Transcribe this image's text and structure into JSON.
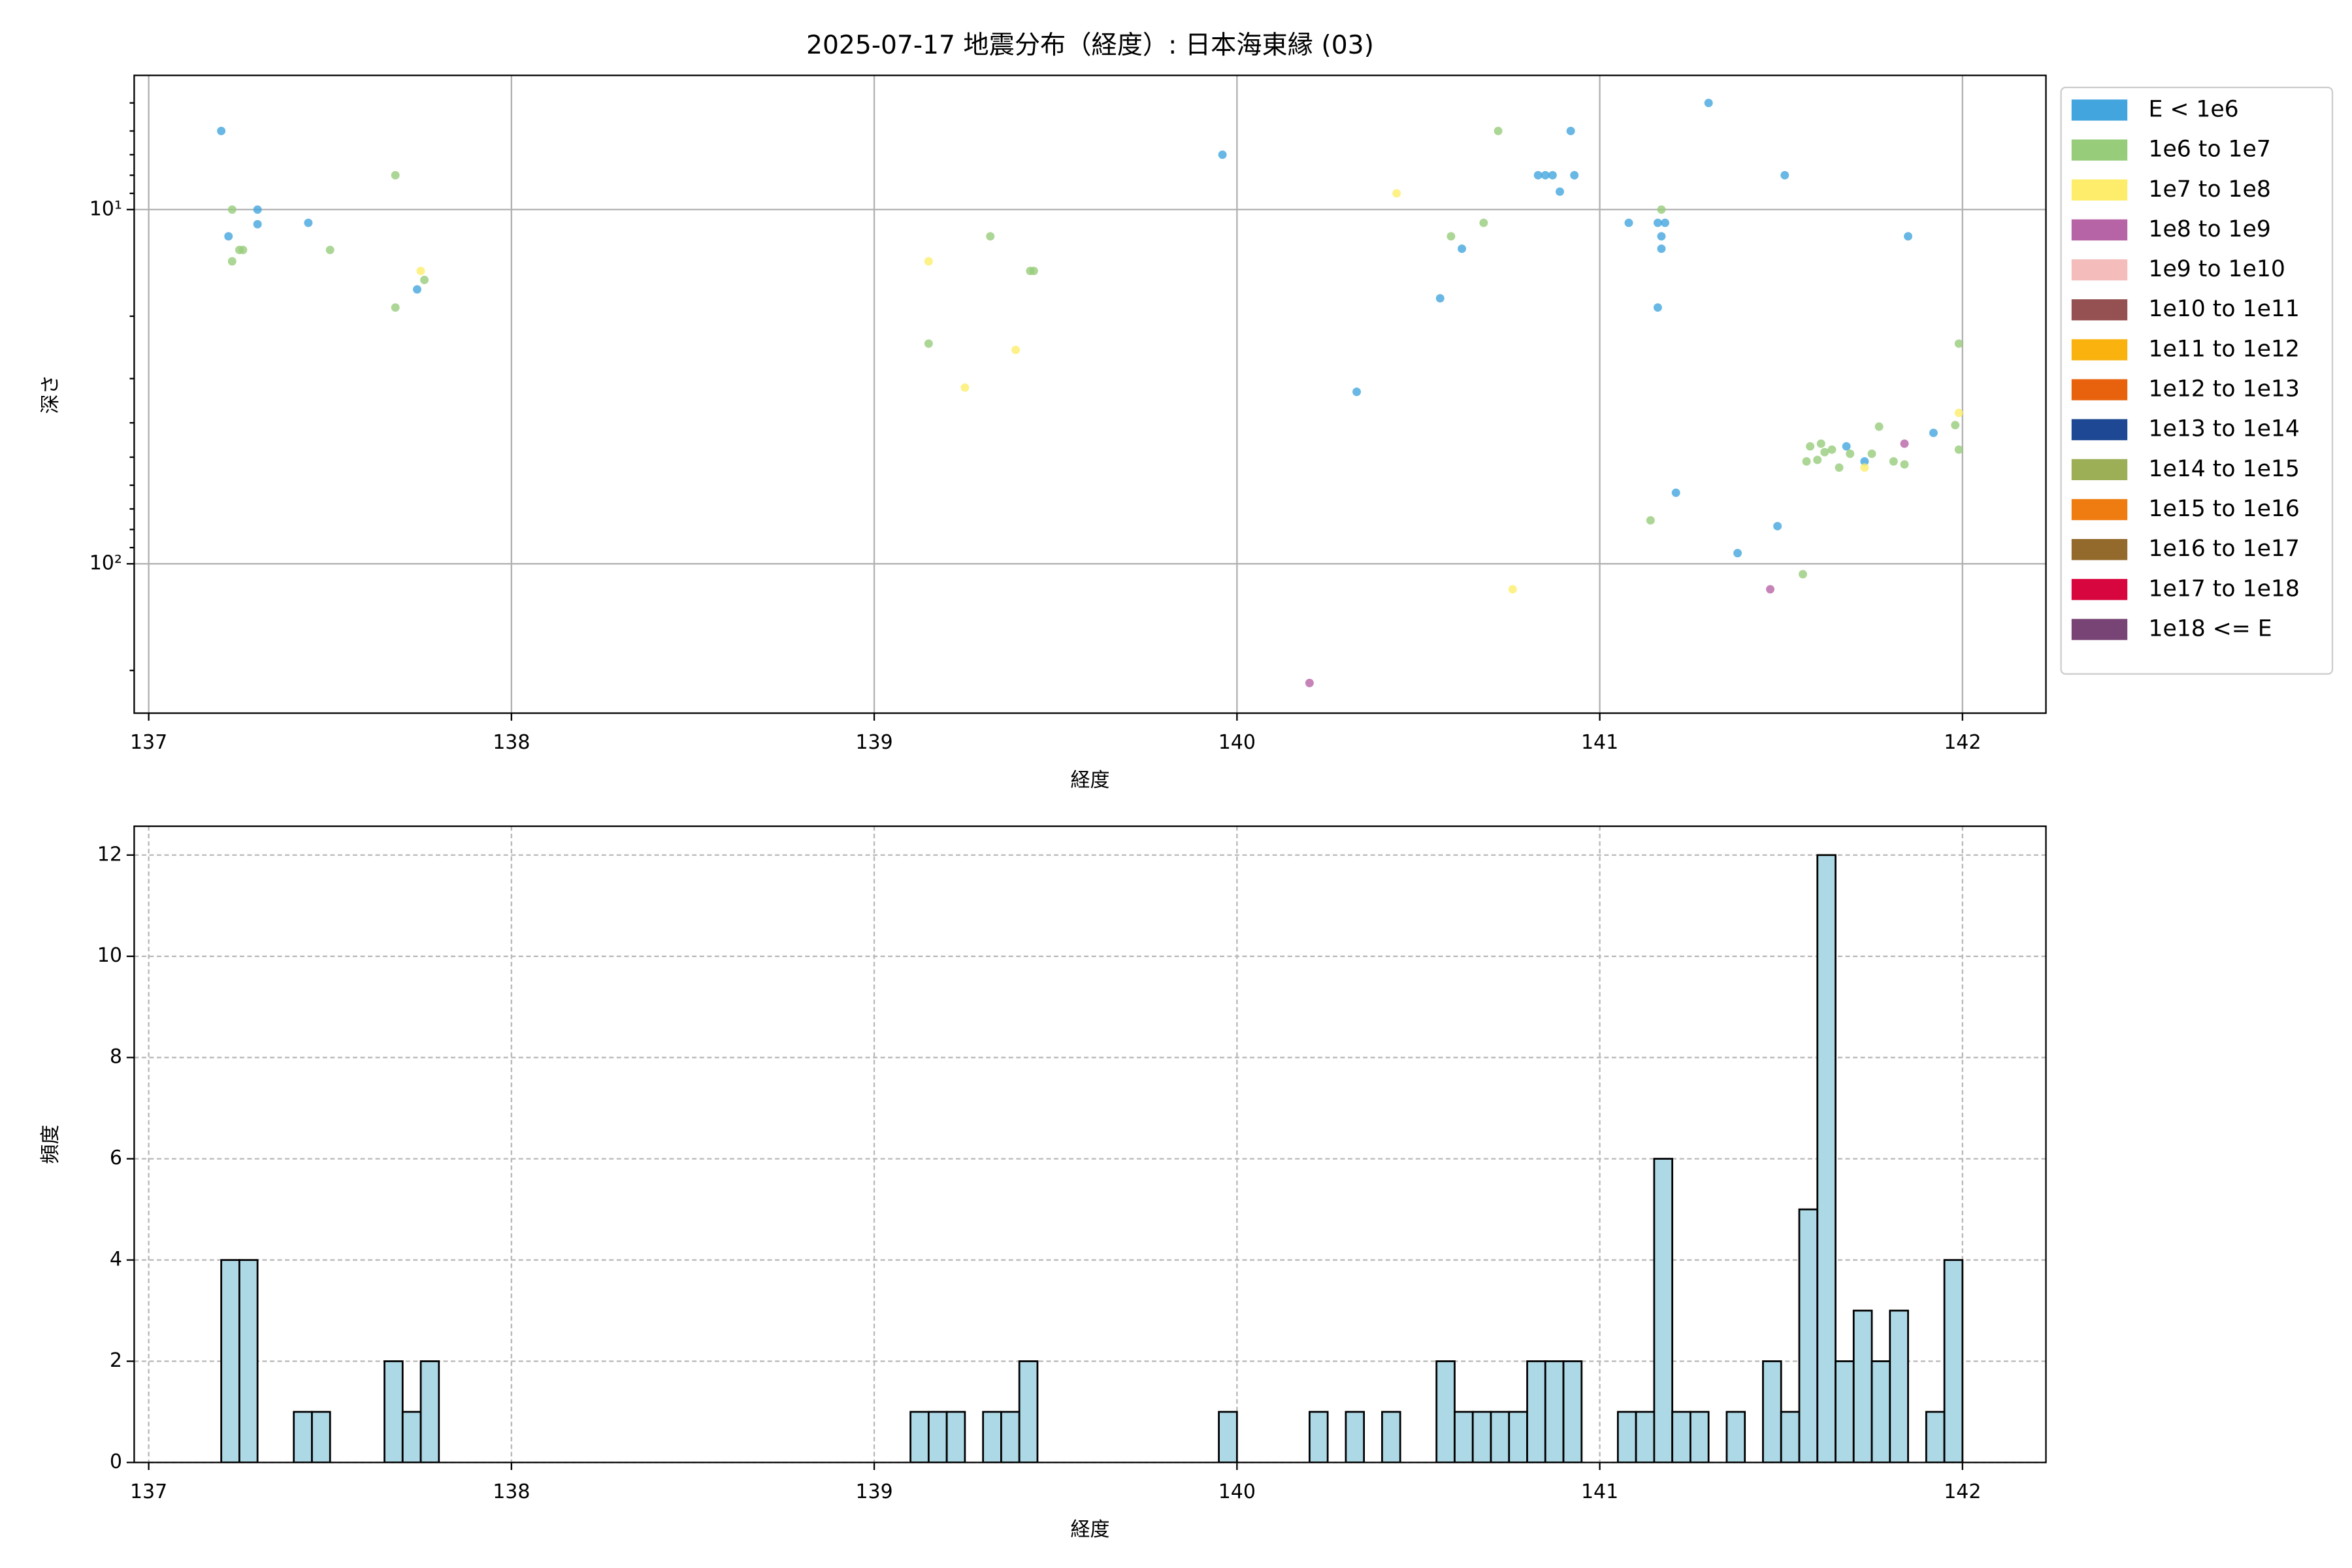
{
  "chart_data": [
    {
      "type": "scatter",
      "title": "2025-07-17 地震分布（経度）: 日本海東縁 (03)",
      "x_label": "経度",
      "y_label": "深さ",
      "xlim": [
        136.96,
        142.23
      ],
      "xticks": [
        137,
        138,
        139,
        140,
        141,
        142
      ],
      "ylim": [
        264,
        4.18
      ],
      "yscale": "log",
      "yticks": [
        {
          "value": 10,
          "label": "10¹"
        },
        {
          "value": 100,
          "label": "10²"
        }
      ],
      "yminor_ticks": [
        5,
        6,
        7,
        8,
        9,
        20,
        30,
        40,
        50,
        60,
        70,
        80,
        90,
        200
      ],
      "grid": true,
      "grid_linestyle": "solid",
      "legend": "outside upper right",
      "series": [
        {
          "name": "E < 1e6",
          "color": "#42a5dd",
          "x": [
            137.2,
            137.22,
            137.3,
            137.3,
            137.44,
            137.74,
            139.96,
            140.33,
            140.56,
            140.62,
            140.83,
            140.85,
            140.87,
            140.89,
            140.92,
            140.93,
            141.08,
            141.16,
            141.18,
            141.17,
            141.17,
            141.16,
            141.21,
            141.3,
            141.38,
            141.49,
            141.51,
            141.68,
            141.73,
            141.85,
            141.92
          ],
          "values": [
            6.0,
            11.9,
            10,
            11.0,
            10.9,
            16.8,
            7.0,
            32.7,
            17.8,
            12.9,
            8.0,
            8.0,
            8.0,
            8.9,
            6.0,
            8.0,
            10.9,
            10.9,
            10.9,
            11.9,
            12.9,
            18.9,
            63,
            5.0,
            93.3,
            78.3,
            8.0,
            46.6,
            51.4,
            11.9,
            42.7
          ]
        },
        {
          "name": "1e6 to 1e7",
          "color": "#97cc7a",
          "x": [
            137.23,
            137.23,
            137.25,
            137.26,
            137.5,
            137.68,
            137.68,
            137.76,
            139.15,
            139.32,
            139.43,
            139.44,
            140.59,
            140.68,
            140.72,
            141.14,
            141.17,
            141.56,
            141.58,
            141.57,
            141.61,
            141.62,
            141.64,
            141.6,
            141.66,
            141.69,
            141.75,
            141.77,
            141.81,
            141.84,
            141.98,
            141.99,
            141.99
          ],
          "values": [
            10,
            14.0,
            13.0,
            13.0,
            13.0,
            8.0,
            18.9,
            15.8,
            23.9,
            11.9,
            14.9,
            14.9,
            11.9,
            10.9,
            6.0,
            75.4,
            10,
            107,
            46.6,
            51.4,
            45.8,
            48.4,
            47.6,
            50.9,
            53.5,
            48.9,
            48.9,
            41.0,
            51.4,
            52.4,
            40.6,
            23.9,
            47.6
          ]
        },
        {
          "name": "1e7 to 1e8",
          "color": "#fded6a",
          "x": [
            140.44,
            139.15,
            137.75,
            139.39,
            139.25,
            140.76,
            141.73,
            141.99
          ],
          "values": [
            9.0,
            14.0,
            14.9,
            24.9,
            31.8,
            118,
            53.5,
            37.5
          ]
        },
        {
          "name": "1e8 to 1e9",
          "color": "#b764a6",
          "x": [
            140.2,
            141.47,
            141.84
          ],
          "values": [
            217,
            118,
            45.8
          ]
        },
        {
          "name": "1e9 to 1e10",
          "color": "#f5bcbc",
          "x": [],
          "values": []
        },
        {
          "name": "1e10 to 1e11",
          "color": "#955151",
          "x": [],
          "values": []
        },
        {
          "name": "1e11 to 1e12",
          "color": "#f9b20e",
          "x": [],
          "values": []
        },
        {
          "name": "1e12 to 1e13",
          "color": "#e8620e",
          "x": [],
          "values": []
        },
        {
          "name": "1e13 to 1e14",
          "color": "#1e4893",
          "x": [],
          "values": []
        },
        {
          "name": "1e14 to 1e15",
          "color": "#9caf56",
          "x": [],
          "values": []
        },
        {
          "name": "1e15 to 1e16",
          "color": "#ef7c11",
          "x": [],
          "values": []
        },
        {
          "name": "1e16 to 1e17",
          "color": "#946a2c",
          "x": [],
          "values": []
        },
        {
          "name": "1e17 to 1e18",
          "color": "#d8063e",
          "x": [],
          "values": []
        },
        {
          "name": "1e18 <= E",
          "color": "#784475",
          "x": [],
          "values": []
        }
      ]
    },
    {
      "type": "histogram",
      "x_label": "経度",
      "y_label": "頻度",
      "color": "#add8e6",
      "edgecolor": "#000000",
      "xlim": [
        136.96,
        142.23
      ],
      "xticks": [
        137,
        138,
        139,
        140,
        141,
        142
      ],
      "ylim": [
        0,
        12.57
      ],
      "yticks": [
        0,
        2,
        4,
        6,
        8,
        10,
        12
      ],
      "grid": true,
      "grid_linestyle": "dashed",
      "bins": [
        137.2,
        137.25,
        137.3,
        137.35,
        137.4,
        137.45,
        137.5,
        137.55,
        137.6,
        137.65,
        137.7,
        137.75,
        137.8,
        137.85,
        137.9,
        137.95,
        138.0,
        138.05,
        138.1,
        138.15,
        138.2,
        138.25,
        138.3,
        138.35,
        138.4,
        138.45,
        138.5,
        138.55,
        138.6,
        138.65,
        138.7,
        138.75,
        138.8,
        138.85,
        138.9,
        138.95,
        139.0,
        139.05,
        139.1,
        139.15,
        139.2,
        139.25,
        139.3,
        139.35,
        139.4,
        139.45,
        139.5,
        139.55,
        139.6,
        139.65,
        139.7,
        139.75,
        139.8,
        139.85,
        139.9,
        139.95,
        140.0,
        140.05,
        140.1,
        140.15,
        140.2,
        140.25,
        140.3,
        140.35,
        140.4,
        140.45,
        140.5,
        140.55,
        140.6,
        140.65,
        140.7,
        140.75,
        140.8,
        140.85,
        140.9,
        140.95,
        141.0,
        141.05,
        141.1,
        141.15,
        141.2,
        141.25,
        141.3,
        141.35,
        141.4,
        141.45,
        141.5,
        141.55,
        141.6,
        141.65,
        141.7,
        141.75,
        141.8,
        141.85,
        141.9,
        141.95,
        142.0
      ],
      "values": [
        4,
        4,
        0,
        0,
        1,
        1,
        0,
        0,
        0,
        2,
        1,
        2,
        0,
        0,
        0,
        0,
        0,
        0,
        0,
        0,
        0,
        0,
        0,
        0,
        0,
        0,
        0,
        0,
        0,
        0,
        0,
        0,
        0,
        0,
        0,
        0,
        0,
        0,
        1,
        1,
        1,
        0,
        1,
        1,
        2,
        0,
        0,
        0,
        0,
        0,
        0,
        0,
        0,
        0,
        0,
        1,
        0,
        0,
        0,
        0,
        1,
        0,
        1,
        0,
        1,
        0,
        0,
        2,
        1,
        1,
        1,
        1,
        2,
        2,
        2,
        0,
        0,
        1,
        1,
        6,
        1,
        1,
        0,
        1,
        0,
        2,
        1,
        5,
        12,
        2,
        3,
        2,
        3,
        0,
        1,
        4
      ]
    }
  ]
}
